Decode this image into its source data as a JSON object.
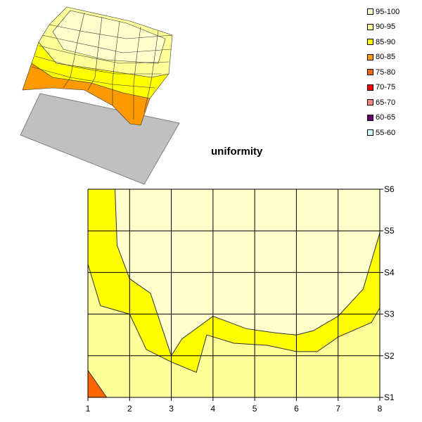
{
  "chart_data": [
    {
      "type": "surface",
      "title": "",
      "note": "3D surface view of the same uniformity data"
    },
    {
      "type": "contour",
      "title": "uniformity",
      "xlabel": "",
      "ylabel": "",
      "x_ticks": [
        "1",
        "2",
        "3",
        "4",
        "5",
        "6",
        "7",
        "8"
      ],
      "y_ticks": [
        "S1",
        "S2",
        "S3",
        "S4",
        "S5",
        "S6"
      ],
      "xlim": [
        1,
        8
      ],
      "ylim": [
        1,
        6
      ],
      "legend_position": "top-right",
      "legend": [
        {
          "label": "95-100",
          "color": "#FFFFCC"
        },
        {
          "label": "90-95",
          "color": "#FFFF99"
        },
        {
          "label": "85-90",
          "color": "#FFFF00"
        },
        {
          "label": "80-85",
          "color": "#FF9900"
        },
        {
          "label": "75-80",
          "color": "#FF6600"
        },
        {
          "label": "70-75",
          "color": "#FF0000"
        },
        {
          "label": "65-70",
          "color": "#FF8080"
        },
        {
          "label": "60-65",
          "color": "#660066"
        },
        {
          "label": "55-60",
          "color": "#CCFFFF"
        }
      ],
      "bands": [
        {
          "range": "80-85",
          "color": "#FF9900",
          "boundary": [
            [
              1,
              2.05
            ],
            [
              2.2,
              1
            ],
            [
              1,
              1
            ]
          ]
        },
        {
          "range": "85-90",
          "color": "#FFFF00",
          "boundary": [
            [
              1,
              3.05
            ],
            [
              1.5,
              2.6
            ],
            [
              2,
              2.3
            ],
            [
              2.6,
              1.75
            ],
            [
              3,
              1.4
            ],
            [
              4,
              1.4
            ],
            [
              5,
              1.5
            ],
            [
              6,
              1.5
            ],
            [
              7,
              1.7
            ],
            [
              8,
              2.15
            ],
            [
              8,
              1
            ],
            [
              1,
              1
            ]
          ]
        },
        {
          "range": "90-95",
          "color": "#FFFF99",
          "boundary": [
            [
              1,
              4.2
            ],
            [
              1.3,
              3.2
            ],
            [
              2,
              3.0
            ],
            [
              2.4,
              2.15
            ],
            [
              3,
              1.85
            ],
            [
              3.6,
              1.6
            ],
            [
              3.85,
              2.5
            ],
            [
              4.5,
              2.3
            ],
            [
              5.3,
              2.25
            ],
            [
              6,
              2.1
            ],
            [
              6.5,
              2.1
            ],
            [
              7,
              2.45
            ],
            [
              7.8,
              2.8
            ],
            [
              8,
              3.15
            ],
            [
              8,
              1
            ],
            [
              1,
              1
            ]
          ]
        },
        {
          "range": "95-100",
          "color": "#FFFFCC",
          "boundary": [
            [
              1.65,
              6
            ],
            [
              1.7,
              4.65
            ],
            [
              2.0,
              3.85
            ],
            [
              2.5,
              3.5
            ],
            [
              3.0,
              2.0
            ],
            [
              3.25,
              2.4
            ],
            [
              4.0,
              2.95
            ],
            [
              4.8,
              2.65
            ],
            [
              5.5,
              2.55
            ],
            [
              6.0,
              2.5
            ],
            [
              6.4,
              2.6
            ],
            [
              7,
              2.95
            ],
            [
              7.6,
              3.6
            ],
            [
              8,
              4.95
            ],
            [
              8,
              6
            ]
          ]
        }
      ],
      "base_color": "#FFFF00"
    }
  ]
}
